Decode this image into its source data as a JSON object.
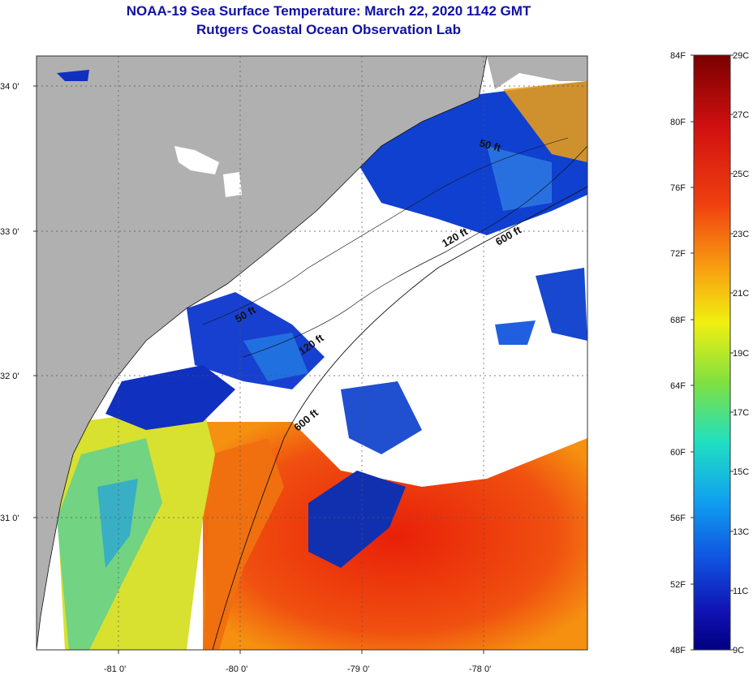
{
  "title": {
    "line1": "NOAA-19 Sea Surface Temperature:  March 22, 2020 1142 GMT",
    "line2": "Rutgers Coastal Ocean Observation Lab"
  },
  "map": {
    "lat_labels": [
      "34 0'",
      "33 0'",
      "32 0'",
      "31 0'"
    ],
    "lon_labels": [
      "-81 0'",
      "-80 0'",
      "-79 0'",
      "-78 0'"
    ],
    "contour_labels": {
      "c50_a": "50 ft",
      "c50_b": "50 ft",
      "c120_a": "120 ft",
      "c120_b": "120 ft",
      "c600_a": "600 ft",
      "c600_b": "600 ft"
    },
    "colors": {
      "land": "#b0b0b0",
      "cloud": "#ffffff",
      "cold": "#1030c8",
      "warm": "#e83010",
      "mid": "#f0c010"
    }
  },
  "colorbar": {
    "f_labels": [
      "84F",
      "80F",
      "76F",
      "72F",
      "68F",
      "64F",
      "60F",
      "56F",
      "52F",
      "48F"
    ],
    "c_labels": [
      "29C",
      "27C",
      "25C",
      "23C",
      "21C",
      "19C",
      "17C",
      "15C",
      "13C",
      "11C",
      "9C"
    ]
  }
}
